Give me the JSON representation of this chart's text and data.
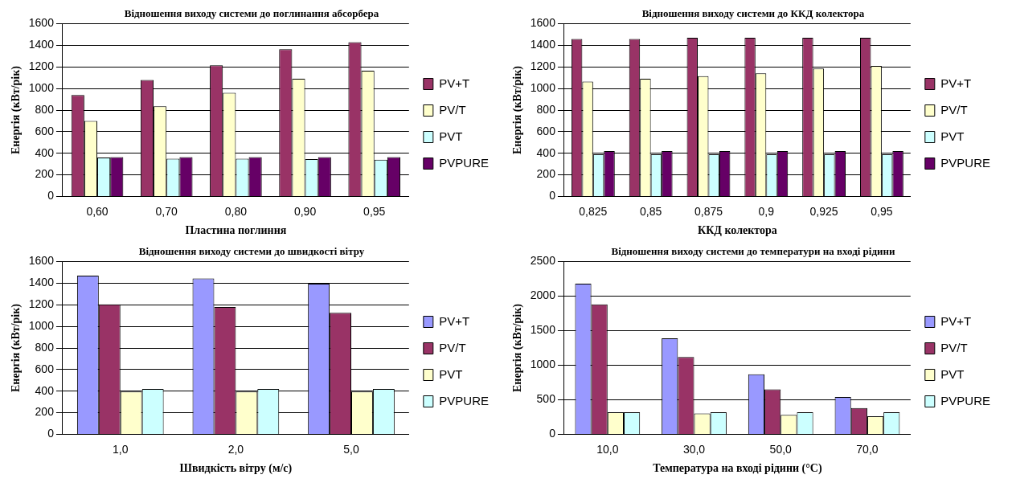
{
  "chart_data": [
    {
      "type": "bar",
      "title": "Відношення виходу системи до поглинання абсорбера",
      "xlabel": "Пластина поглиння",
      "ylabel": "Енергія (кВт/рік)",
      "categories": [
        "0,60",
        "0,70",
        "0,80",
        "0,90",
        "0,95"
      ],
      "series": [
        {
          "name": "PV+T",
          "color": "#993366",
          "values": [
            940,
            1080,
            1215,
            1365,
            1430
          ]
        },
        {
          "name": "PV/T",
          "color": "#ffffcc",
          "values": [
            700,
            835,
            960,
            1090,
            1165
          ]
        },
        {
          "name": "PVT",
          "color": "#ccffff",
          "values": [
            360,
            350,
            350,
            345,
            340
          ]
        },
        {
          "name": "PVPURE",
          "color": "#660066",
          "values": [
            365,
            365,
            365,
            365,
            365
          ]
        }
      ],
      "ylim": [
        0,
        1600
      ],
      "yticks": [
        0,
        200,
        400,
        600,
        800,
        1000,
        1200,
        1400,
        1600
      ],
      "grid": "y",
      "legend": "right"
    },
    {
      "type": "bar",
      "title": "Відношення виходу системи до ККД колектора",
      "xlabel": "ККД колектора",
      "ylabel": "Енергія (кВт/рік)",
      "categories": [
        "0,825",
        "0,85",
        "0,875",
        "0,9",
        "0,925",
        "0,95"
      ],
      "series": [
        {
          "name": "PV+T",
          "color": "#993366",
          "values": [
            1460,
            1460,
            1470,
            1470,
            1470,
            1470
          ]
        },
        {
          "name": "PV/T",
          "color": "#ffffcc",
          "values": [
            1065,
            1090,
            1115,
            1140,
            1185,
            1210
          ]
        },
        {
          "name": "PVT",
          "color": "#ccffff",
          "values": [
            390,
            390,
            390,
            390,
            390,
            390
          ]
        },
        {
          "name": "PVPURE",
          "color": "#660066",
          "values": [
            420,
            420,
            420,
            420,
            420,
            420
          ]
        }
      ],
      "ylim": [
        0,
        1600
      ],
      "yticks": [
        0,
        200,
        400,
        600,
        800,
        1000,
        1200,
        1400,
        1600
      ],
      "grid": "y",
      "legend": "right"
    },
    {
      "type": "bar",
      "title": "Відношення виходу системи до швидкості вітру",
      "xlabel": "Швидкість вітру (м/с)",
      "ylabel": "Енергія (кВт/рік)",
      "categories": [
        "1,0",
        "2,0",
        "5,0"
      ],
      "series": [
        {
          "name": "PV+T",
          "color": "#9999ff",
          "values": [
            1470,
            1445,
            1395
          ]
        },
        {
          "name": "PV/T",
          "color": "#993366",
          "values": [
            1205,
            1180,
            1125
          ]
        },
        {
          "name": "PVT",
          "color": "#ffffcc",
          "values": [
            395,
            395,
            395
          ]
        },
        {
          "name": "PVPURE",
          "color": "#ccffff",
          "values": [
            420,
            420,
            420
          ]
        }
      ],
      "ylim": [
        0,
        1600
      ],
      "yticks": [
        0,
        200,
        400,
        600,
        800,
        1000,
        1200,
        1400,
        1600
      ],
      "grid": "y",
      "legend": "right"
    },
    {
      "type": "bar",
      "title": "Відношення виходу системи до температури на вході рідини",
      "xlabel": "Температура на вході рідини (°C)",
      "ylabel": "Енергія (кВт/рік)",
      "categories": [
        "10,0",
        "30,0",
        "50,0",
        "70,0"
      ],
      "series": [
        {
          "name": "PV+T",
          "color": "#9999ff",
          "values": [
            2180,
            1390,
            870,
            540
          ]
        },
        {
          "name": "PV/T",
          "color": "#993366",
          "values": [
            1880,
            1120,
            650,
            380
          ]
        },
        {
          "name": "PVT",
          "color": "#ffffcc",
          "values": [
            320,
            300,
            280,
            260
          ]
        },
        {
          "name": "PVPURE",
          "color": "#ccffff",
          "values": [
            320,
            320,
            320,
            320
          ]
        }
      ],
      "ylim": [
        0,
        2500
      ],
      "yticks": [
        0,
        500,
        1000,
        1500,
        2000,
        2500
      ],
      "grid": "y",
      "legend": "right"
    }
  ]
}
